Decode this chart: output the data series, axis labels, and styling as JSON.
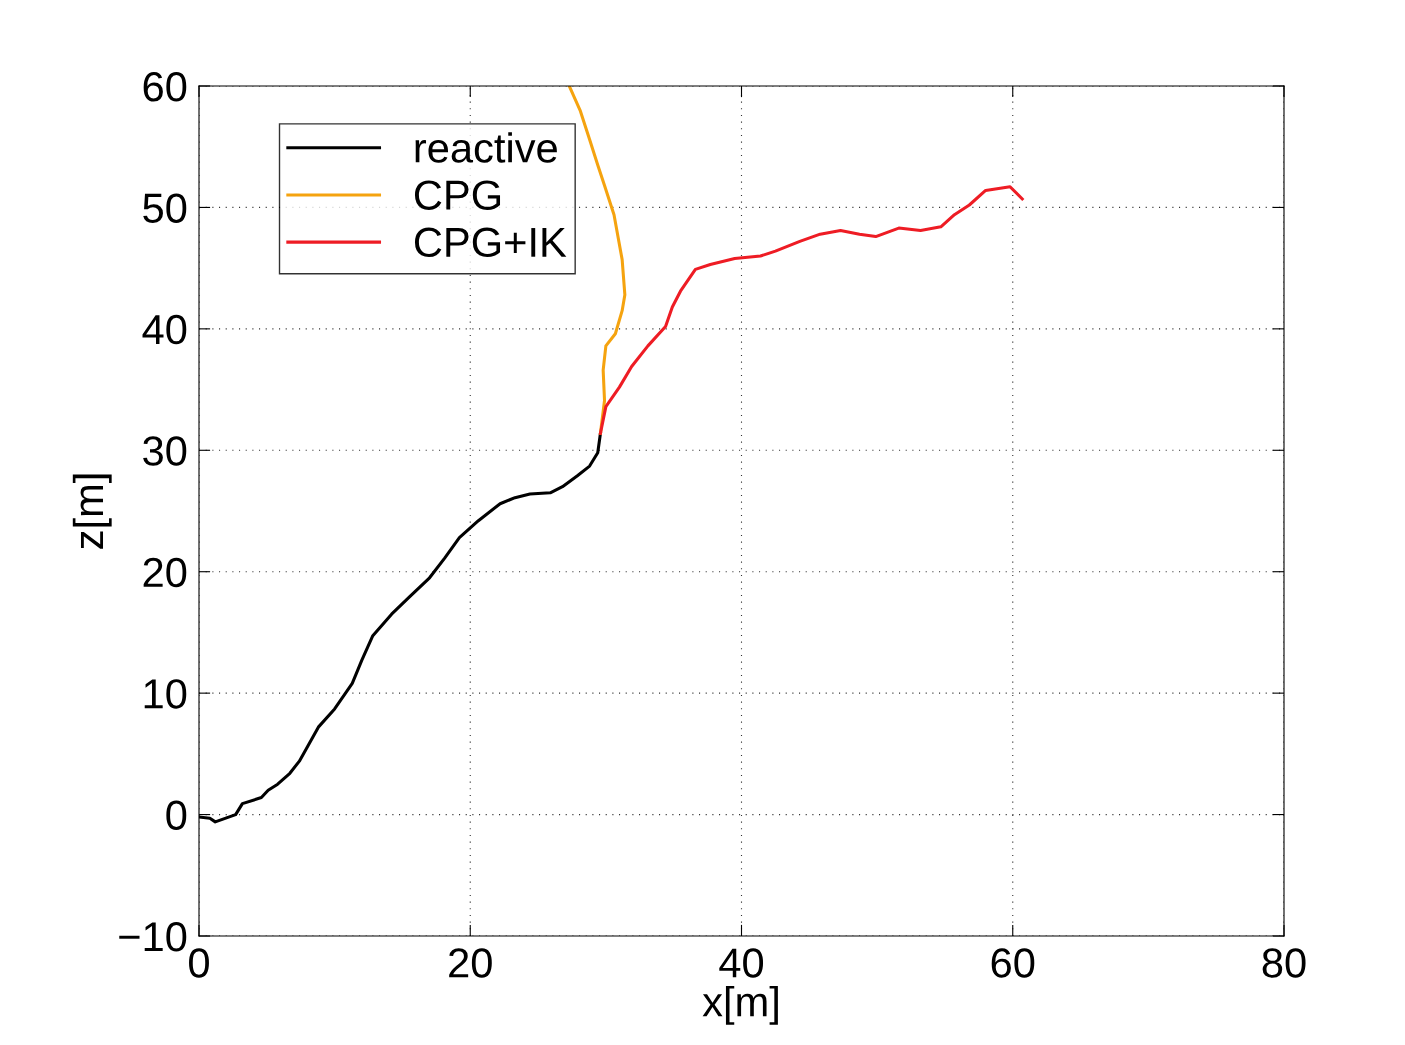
{
  "chart_data": {
    "type": "line",
    "xlabel": "x[m]",
    "ylabel": "z[m]",
    "xlim": [
      0,
      80
    ],
    "ylim": [
      -10,
      60
    ],
    "xticks": [
      0,
      20,
      40,
      60,
      80
    ],
    "yticks": [
      {
        "value": -10,
        "label": "−10"
      },
      0,
      10,
      20,
      30,
      40,
      50,
      60
    ],
    "grid": true,
    "legend": "top left",
    "series": [
      {
        "name": "reactive",
        "color": "#000000",
        "x": [
          0,
          0.8,
          1.2,
          2.7,
          3.2,
          4.6,
          5.1,
          5.8,
          6.7,
          7.4,
          8.8,
          10.0,
          11.3,
          12.0,
          12.8,
          14.2,
          15.5,
          17.0,
          18.1,
          19.2,
          20.6,
          22.2,
          23.3,
          24.4,
          25.9,
          26.8,
          27.9,
          28.8,
          29.4,
          29.6
        ],
        "values": [
          -0.2,
          -0.3,
          -0.6,
          0,
          0.9,
          1.4,
          2.0,
          2.5,
          3.4,
          4.4,
          7.2,
          8.7,
          10.8,
          12.7,
          14.7,
          16.5,
          17.9,
          19.5,
          21.1,
          22.8,
          24.2,
          25.6,
          26.1,
          26.4,
          26.5,
          27.0,
          27.9,
          28.7,
          29.8,
          31.4
        ]
      },
      {
        "name": "CPG",
        "color": "#f5a30f",
        "x": [
          29.6,
          29.9,
          29.8,
          30.0,
          30.7,
          31.2,
          31.4,
          31.2,
          30.6,
          29.9,
          29.4,
          28.8,
          28.1,
          27.3
        ],
        "values": [
          31.4,
          34.1,
          36.6,
          38.6,
          39.6,
          41.5,
          42.8,
          45.7,
          49.4,
          51.8,
          53.5,
          55.6,
          58.0,
          60
        ]
      },
      {
        "name": "CPG+IK",
        "color": "#ee1c24",
        "x": [
          29.6,
          30.0,
          31.0,
          31.9,
          33.1,
          34.4,
          34.9,
          35.5,
          36.6,
          37.7,
          39.5,
          41.4,
          42.5,
          44.3,
          45.8,
          47.3,
          48.7,
          49.9,
          51.6,
          53.2,
          54.7,
          55.7,
          56.8,
          58.0,
          59.8,
          60.7
        ],
        "values": [
          31.4,
          33.6,
          35.2,
          36.9,
          38.6,
          40.2,
          41.8,
          43.1,
          44.9,
          45.3,
          45.8,
          46.0,
          46.4,
          47.2,
          47.8,
          48.1,
          47.8,
          47.6,
          48.3,
          48.1,
          48.4,
          49.4,
          50.2,
          51.4,
          51.7,
          50.7
        ]
      }
    ]
  }
}
